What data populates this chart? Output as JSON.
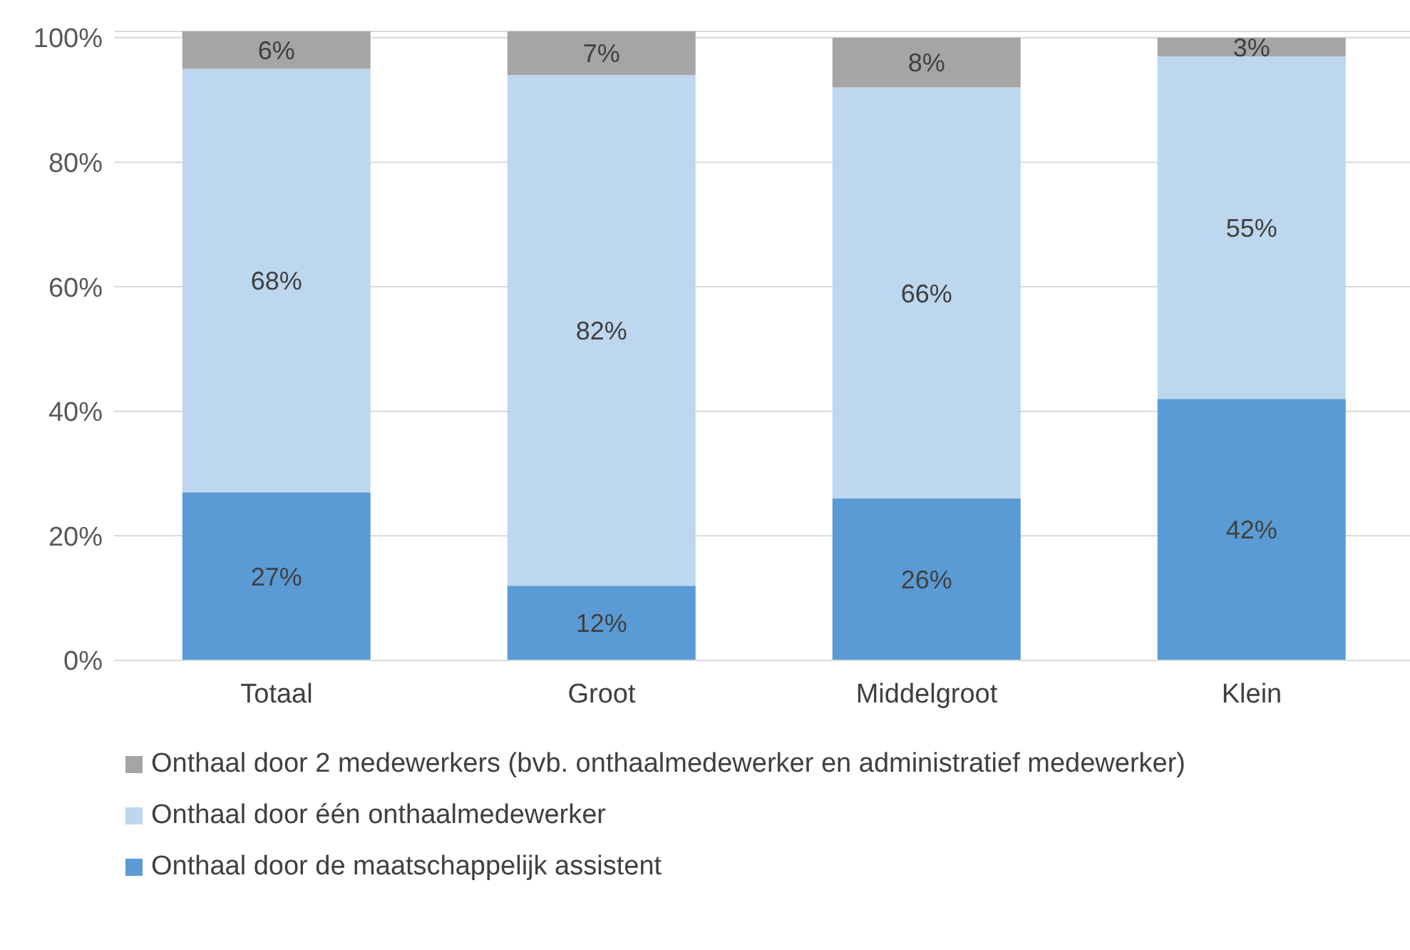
{
  "chart_data": {
    "type": "bar",
    "stacked": true,
    "categories": [
      "Totaal",
      "Groot",
      "Middelgroot",
      "Klein"
    ],
    "series": [
      {
        "name": "Onthaal door de maatschappelijk assistent",
        "color": "#5b9bd5",
        "values": [
          27,
          12,
          26,
          42
        ],
        "value_labels": [
          "27%",
          "12%",
          "26%",
          "42%"
        ]
      },
      {
        "name": "Onthaal door één onthaalmedewerker",
        "color": "#bdd7ee",
        "values": [
          68,
          82,
          66,
          55
        ],
        "value_labels": [
          "68%",
          "82%",
          "66%",
          "55%"
        ]
      },
      {
        "name": "Onthaal door 2 medewerkers (bvb. onthaalmedewerker en administratief medewerker)",
        "color": "#a5a5a5",
        "values": [
          6,
          7,
          8,
          3
        ],
        "value_labels": [
          "6%",
          "7%",
          "8%",
          "3%"
        ]
      }
    ],
    "ylim": [
      0,
      101
    ],
    "yticks": [
      {
        "value": 0,
        "label": "0%"
      },
      {
        "value": 20,
        "label": "20%"
      },
      {
        "value": 40,
        "label": "40%"
      },
      {
        "value": 60,
        "label": "60%"
      },
      {
        "value": 80,
        "label": "80%"
      },
      {
        "value": 100,
        "label": "100%"
      }
    ],
    "grid": "y",
    "legend": "bottom"
  }
}
